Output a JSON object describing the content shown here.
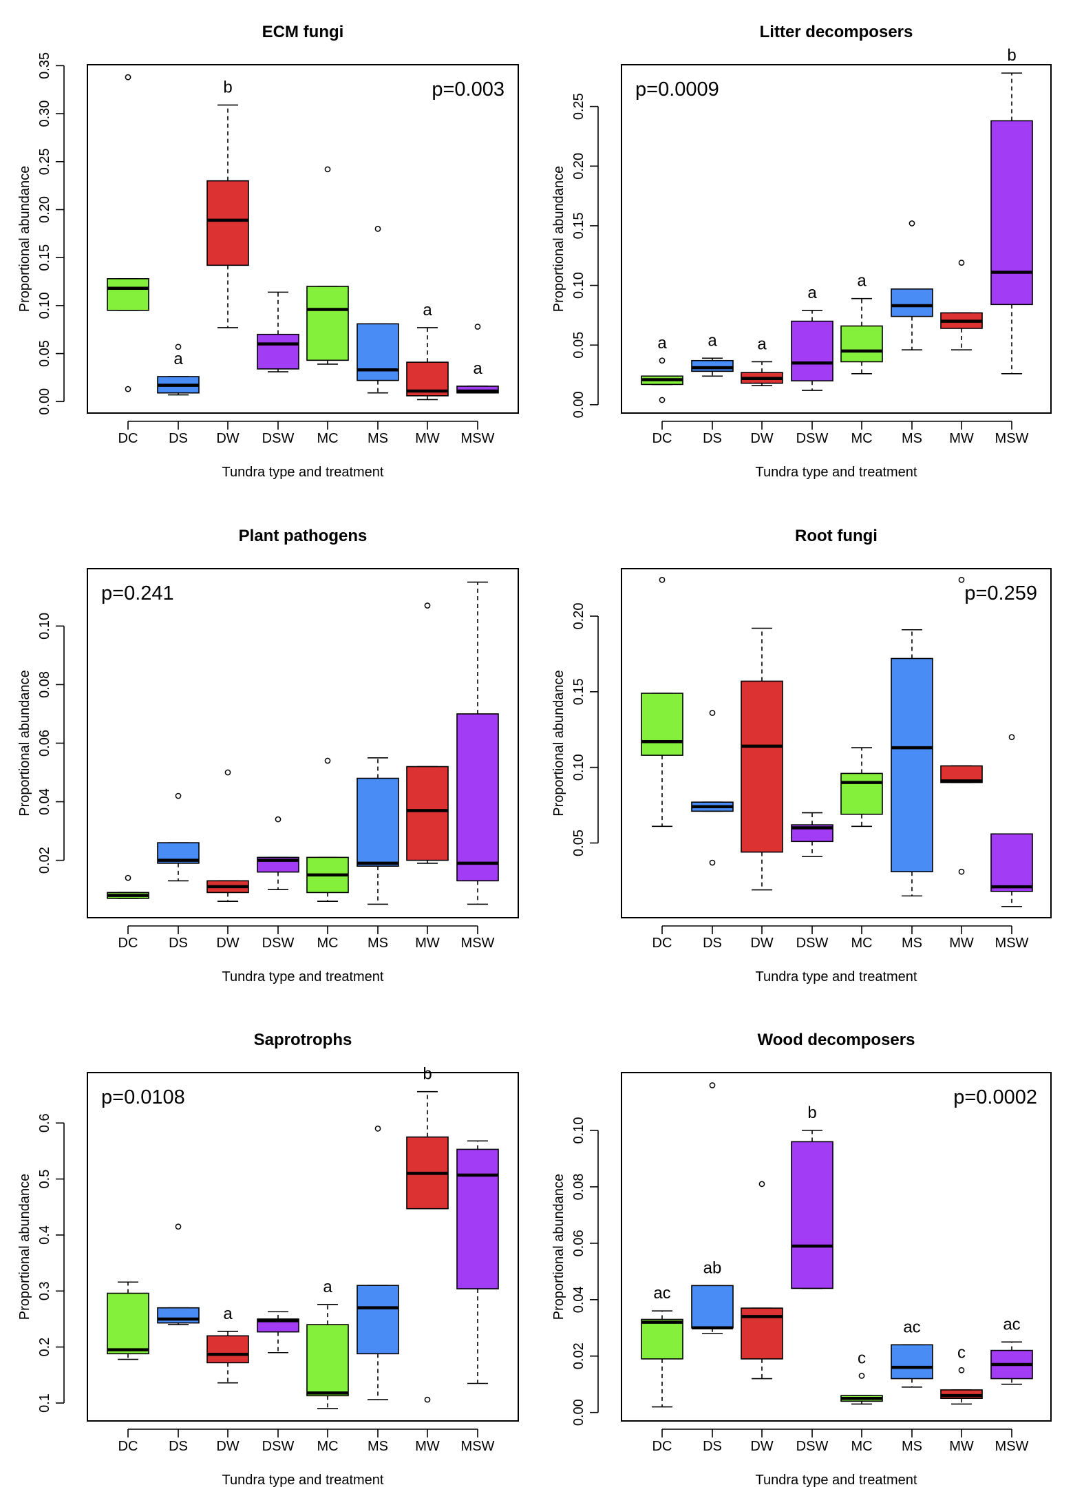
{
  "colors": {
    "green": "#84F03B",
    "blue": "#4A8CF5",
    "red": "#DD3232",
    "purple": "#A23CF5",
    "black": "#000000"
  },
  "categories": [
    "DC",
    "DS",
    "DW",
    "DSW",
    "MC",
    "MS",
    "MW",
    "MSW"
  ],
  "box_colors": [
    "green",
    "blue",
    "red",
    "purple",
    "green",
    "blue",
    "red",
    "purple"
  ],
  "chart_data": [
    {
      "type": "box",
      "title": "ECM fungi",
      "xlabel": "Tundra type and treatment",
      "ylabel": "Proportional abundance",
      "p_value": "p=0.003",
      "p_position": "top-right",
      "ylim": [
        -0.012,
        0.351
      ],
      "yticks": [
        "0.00",
        "0.05",
        "0.10",
        "0.15",
        "0.20",
        "0.25",
        "0.30",
        "0.35"
      ],
      "boxes": [
        {
          "category": "DC",
          "min": 0.095,
          "q1": 0.095,
          "median": 0.118,
          "q3": 0.128,
          "max": 0.128,
          "outliers": [
            0.338,
            0.013
          ],
          "letter": ""
        },
        {
          "category": "DS",
          "min": 0.007,
          "q1": 0.009,
          "median": 0.017,
          "q3": 0.026,
          "max": 0.026,
          "outliers": [
            0.057
          ],
          "letter": "a"
        },
        {
          "category": "DW",
          "min": 0.077,
          "q1": 0.142,
          "median": 0.189,
          "q3": 0.23,
          "max": 0.309,
          "outliers": [],
          "letter": "b"
        },
        {
          "category": "DSW",
          "min": 0.031,
          "q1": 0.034,
          "median": 0.06,
          "q3": 0.07,
          "max": 0.114,
          "outliers": [],
          "letter": ""
        },
        {
          "category": "MC",
          "min": 0.039,
          "q1": 0.043,
          "median": 0.096,
          "q3": 0.12,
          "max": 0.12,
          "outliers": [
            0.242
          ],
          "letter": ""
        },
        {
          "category": "MS",
          "min": 0.009,
          "q1": 0.022,
          "median": 0.033,
          "q3": 0.081,
          "max": 0.081,
          "outliers": [
            0.18
          ],
          "letter": ""
        },
        {
          "category": "MW",
          "min": 0.002,
          "q1": 0.006,
          "median": 0.011,
          "q3": 0.041,
          "max": 0.077,
          "outliers": [],
          "letter": "a"
        },
        {
          "category": "MSW",
          "min": 0.009,
          "q1": 0.009,
          "median": 0.011,
          "q3": 0.016,
          "max": 0.016,
          "outliers": [
            0.078
          ],
          "letter": "a"
        }
      ]
    },
    {
      "type": "box",
      "title": "Litter decomposers",
      "xlabel": "Tundra type and treatment",
      "ylabel": "Proportional abundance",
      "p_value": "p=0.0009",
      "p_position": "top-left",
      "ylim": [
        -0.007,
        0.285
      ],
      "yticks": [
        "0.00",
        "0.05",
        "0.10",
        "0.15",
        "0.20",
        "0.25"
      ],
      "boxes": [
        {
          "category": "DC",
          "min": 0.017,
          "q1": 0.017,
          "median": 0.021,
          "q3": 0.024,
          "max": 0.024,
          "outliers": [
            0.037,
            0.004
          ],
          "letter": "a"
        },
        {
          "category": "DS",
          "min": 0.024,
          "q1": 0.028,
          "median": 0.031,
          "q3": 0.037,
          "max": 0.039,
          "outliers": [],
          "letter": "a"
        },
        {
          "category": "DW",
          "min": 0.016,
          "q1": 0.018,
          "median": 0.022,
          "q3": 0.027,
          "max": 0.036,
          "outliers": [],
          "letter": "a"
        },
        {
          "category": "DSW",
          "min": 0.012,
          "q1": 0.02,
          "median": 0.035,
          "q3": 0.07,
          "max": 0.079,
          "outliers": [],
          "letter": "a"
        },
        {
          "category": "MC",
          "min": 0.026,
          "q1": 0.036,
          "median": 0.045,
          "q3": 0.066,
          "max": 0.089,
          "outliers": [],
          "letter": "a"
        },
        {
          "category": "MS",
          "min": 0.046,
          "q1": 0.074,
          "median": 0.083,
          "q3": 0.097,
          "max": 0.097,
          "outliers": [
            0.152
          ],
          "letter": ""
        },
        {
          "category": "MW",
          "min": 0.046,
          "q1": 0.064,
          "median": 0.07,
          "q3": 0.077,
          "max": 0.077,
          "outliers": [
            0.119
          ],
          "letter": ""
        },
        {
          "category": "MSW",
          "min": 0.026,
          "q1": 0.084,
          "median": 0.111,
          "q3": 0.238,
          "max": 0.278,
          "outliers": [],
          "letter": "b"
        }
      ]
    },
    {
      "type": "box",
      "title": "Plant pathogens",
      "xlabel": "Tundra type and treatment",
      "ylabel": "Proportional abundance",
      "p_value": "p=0.241",
      "p_position": "top-left",
      "ylim": [
        0.0004,
        0.1196
      ],
      "yticks": [
        "0.02",
        "0.04",
        "0.06",
        "0.08",
        "0.10"
      ],
      "boxes": [
        {
          "category": "DC",
          "min": 0.007,
          "q1": 0.007,
          "median": 0.008,
          "q3": 0.009,
          "max": 0.009,
          "outliers": [
            0.014
          ],
          "letter": ""
        },
        {
          "category": "DS",
          "min": 0.013,
          "q1": 0.019,
          "median": 0.02,
          "q3": 0.026,
          "max": 0.026,
          "outliers": [
            0.042
          ],
          "letter": ""
        },
        {
          "category": "DW",
          "min": 0.006,
          "q1": 0.009,
          "median": 0.011,
          "q3": 0.013,
          "max": 0.013,
          "outliers": [
            0.05
          ],
          "letter": ""
        },
        {
          "category": "DSW",
          "min": 0.01,
          "q1": 0.016,
          "median": 0.02,
          "q3": 0.021,
          "max": 0.021,
          "outliers": [
            0.034
          ],
          "letter": ""
        },
        {
          "category": "MC",
          "min": 0.006,
          "q1": 0.009,
          "median": 0.015,
          "q3": 0.021,
          "max": 0.021,
          "outliers": [
            0.054
          ],
          "letter": ""
        },
        {
          "category": "MS",
          "min": 0.005,
          "q1": 0.018,
          "median": 0.019,
          "q3": 0.048,
          "max": 0.055,
          "outliers": [],
          "letter": ""
        },
        {
          "category": "MW",
          "min": 0.019,
          "q1": 0.02,
          "median": 0.037,
          "q3": 0.052,
          "max": 0.052,
          "outliers": [
            0.107
          ],
          "letter": ""
        },
        {
          "category": "MSW",
          "min": 0.005,
          "q1": 0.013,
          "median": 0.019,
          "q3": 0.07,
          "max": 0.115,
          "outliers": [],
          "letter": ""
        }
      ]
    },
    {
      "type": "box",
      "title": "Root fungi",
      "xlabel": "Tundra type and treatment",
      "ylabel": "Proportional abundance",
      "p_value": "p=0.259",
      "p_position": "top-right",
      "ylim": [
        0.0006,
        0.2314
      ],
      "yticks": [
        "0.05",
        "0.10",
        "0.15",
        "0.20"
      ],
      "boxes": [
        {
          "category": "DC",
          "min": 0.061,
          "q1": 0.108,
          "median": 0.117,
          "q3": 0.149,
          "max": 0.149,
          "outliers": [
            0.224
          ],
          "letter": ""
        },
        {
          "category": "DS",
          "min": 0.071,
          "q1": 0.071,
          "median": 0.074,
          "q3": 0.077,
          "max": 0.077,
          "outliers": [
            0.136,
            0.037
          ],
          "letter": ""
        },
        {
          "category": "DW",
          "min": 0.019,
          "q1": 0.044,
          "median": 0.114,
          "q3": 0.157,
          "max": 0.192,
          "outliers": [],
          "letter": ""
        },
        {
          "category": "DSW",
          "min": 0.041,
          "q1": 0.051,
          "median": 0.06,
          "q3": 0.062,
          "max": 0.07,
          "outliers": [],
          "letter": ""
        },
        {
          "category": "MC",
          "min": 0.061,
          "q1": 0.069,
          "median": 0.09,
          "q3": 0.096,
          "max": 0.113,
          "outliers": [],
          "letter": ""
        },
        {
          "category": "MS",
          "min": 0.015,
          "q1": 0.031,
          "median": 0.113,
          "q3": 0.172,
          "max": 0.191,
          "outliers": [],
          "letter": ""
        },
        {
          "category": "MW",
          "min": 0.09,
          "q1": 0.09,
          "median": 0.091,
          "q3": 0.101,
          "max": 0.101,
          "outliers": [
            0.224,
            0.031
          ],
          "letter": ""
        },
        {
          "category": "MSW",
          "min": 0.008,
          "q1": 0.018,
          "median": 0.021,
          "q3": 0.056,
          "max": 0.056,
          "outliers": [
            0.12
          ],
          "letter": ""
        }
      ]
    },
    {
      "type": "box",
      "title": "Saprotrophs",
      "xlabel": "Tundra type and treatment",
      "ylabel": "Proportional abundance",
      "p_value": "p=0.0108",
      "p_position": "top-left",
      "ylim": [
        0.068,
        0.69
      ],
      "yticks": [
        "0.1",
        "0.2",
        "0.3",
        "0.4",
        "0.5",
        "0.6"
      ],
      "boxes": [
        {
          "category": "DC",
          "min": 0.178,
          "q1": 0.188,
          "median": 0.195,
          "q3": 0.296,
          "max": 0.316,
          "outliers": [],
          "letter": ""
        },
        {
          "category": "DS",
          "min": 0.24,
          "q1": 0.243,
          "median": 0.25,
          "q3": 0.27,
          "max": 0.27,
          "outliers": [
            0.415
          ],
          "letter": ""
        },
        {
          "category": "DW",
          "min": 0.136,
          "q1": 0.172,
          "median": 0.187,
          "q3": 0.22,
          "max": 0.228,
          "outliers": [],
          "letter": "a"
        },
        {
          "category": "DSW",
          "min": 0.19,
          "q1": 0.227,
          "median": 0.247,
          "q3": 0.25,
          "max": 0.263,
          "outliers": [],
          "letter": ""
        },
        {
          "category": "MC",
          "min": 0.09,
          "q1": 0.113,
          "median": 0.118,
          "q3": 0.24,
          "max": 0.276,
          "outliers": [],
          "letter": "a"
        },
        {
          "category": "MS",
          "min": 0.106,
          "q1": 0.188,
          "median": 0.27,
          "q3": 0.31,
          "max": 0.31,
          "outliers": [
            0.59
          ],
          "letter": ""
        },
        {
          "category": "MW",
          "min": 0.447,
          "q1": 0.447,
          "median": 0.51,
          "q3": 0.575,
          "max": 0.656,
          "outliers": [
            0.106
          ],
          "letter": "b"
        },
        {
          "category": "MSW",
          "min": 0.135,
          "q1": 0.304,
          "median": 0.507,
          "q3": 0.553,
          "max": 0.568,
          "outliers": [],
          "letter": ""
        }
      ]
    },
    {
      "type": "box",
      "title": "Wood decomposers",
      "xlabel": "Tundra type and treatment",
      "ylabel": "Proportional abundance",
      "p_value": "p=0.0002",
      "p_position": "top-right",
      "ylim": [
        -0.003,
        0.1205
      ],
      "yticks": [
        "0.00",
        "0.02",
        "0.04",
        "0.06",
        "0.08",
        "0.10"
      ],
      "boxes": [
        {
          "category": "DC",
          "min": 0.002,
          "q1": 0.019,
          "median": 0.032,
          "q3": 0.033,
          "max": 0.036,
          "outliers": [],
          "letter": "ac"
        },
        {
          "category": "DS",
          "min": 0.028,
          "q1": 0.03,
          "median": 0.03,
          "q3": 0.045,
          "max": 0.045,
          "outliers": [
            0.116
          ],
          "letter": "ab"
        },
        {
          "category": "DW",
          "min": 0.012,
          "q1": 0.019,
          "median": 0.034,
          "q3": 0.037,
          "max": 0.037,
          "outliers": [
            0.081
          ],
          "letter": ""
        },
        {
          "category": "DSW",
          "min": 0.044,
          "q1": 0.044,
          "median": 0.059,
          "q3": 0.096,
          "max": 0.1,
          "outliers": [],
          "letter": "b"
        },
        {
          "category": "MC",
          "min": 0.003,
          "q1": 0.004,
          "median": 0.005,
          "q3": 0.006,
          "max": 0.006,
          "outliers": [
            0.013
          ],
          "letter": "c"
        },
        {
          "category": "MS",
          "min": 0.009,
          "q1": 0.012,
          "median": 0.016,
          "q3": 0.024,
          "max": 0.024,
          "outliers": [],
          "letter": "ac"
        },
        {
          "category": "MW",
          "min": 0.003,
          "q1": 0.005,
          "median": 0.006,
          "q3": 0.008,
          "max": 0.008,
          "outliers": [
            0.015
          ],
          "letter": "c"
        },
        {
          "category": "MSW",
          "min": 0.01,
          "q1": 0.012,
          "median": 0.017,
          "q3": 0.022,
          "max": 0.025,
          "outliers": [],
          "letter": "ac"
        }
      ]
    }
  ]
}
